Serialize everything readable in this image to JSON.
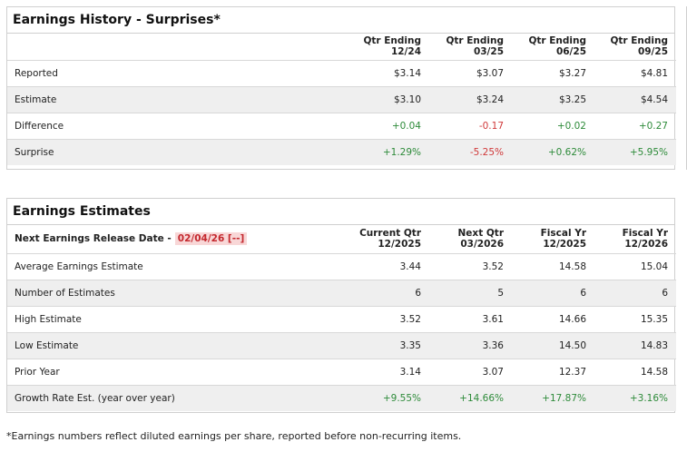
{
  "history": {
    "title": "Earnings History - Surprises*",
    "columns": [
      {
        "l1": "Qtr Ending",
        "l2": "12/24"
      },
      {
        "l1": "Qtr Ending",
        "l2": "03/25"
      },
      {
        "l1": "Qtr Ending",
        "l2": "06/25"
      },
      {
        "l1": "Qtr Ending",
        "l2": "09/25"
      }
    ],
    "rows": [
      {
        "label": "Reported",
        "values": [
          "$3.14",
          "$3.07",
          "$3.27",
          "$4.81"
        ]
      },
      {
        "label": "Estimate",
        "values": [
          "$3.10",
          "$3.24",
          "$3.25",
          "$4.54"
        ]
      },
      {
        "label": "Difference",
        "values": [
          "+0.04",
          "-0.17",
          "+0.02",
          "+0.27"
        ]
      },
      {
        "label": "Surprise",
        "values": [
          "+1.29%",
          "-5.25%",
          "+0.62%",
          "+5.95%"
        ]
      }
    ]
  },
  "estimates": {
    "title": "Earnings Estimates",
    "release_label": "Next Earnings Release Date -",
    "release_date": "02/04/26 [--]",
    "columns": [
      {
        "l1": "Current Qtr",
        "l2": "12/2025"
      },
      {
        "l1": "Next Qtr",
        "l2": "03/2026"
      },
      {
        "l1": "Fiscal Yr",
        "l2": "12/2025"
      },
      {
        "l1": "Fiscal Yr",
        "l2": "12/2026"
      }
    ],
    "rows": [
      {
        "label": "Average Earnings Estimate",
        "values": [
          "3.44",
          "3.52",
          "14.58",
          "15.04"
        ]
      },
      {
        "label": "Number of Estimates",
        "values": [
          "6",
          "5",
          "6",
          "6"
        ]
      },
      {
        "label": "High Estimate",
        "values": [
          "3.52",
          "3.61",
          "14.66",
          "15.35"
        ]
      },
      {
        "label": "Low Estimate",
        "values": [
          "3.35",
          "3.36",
          "14.50",
          "14.83"
        ]
      },
      {
        "label": "Prior Year",
        "values": [
          "3.14",
          "3.07",
          "12.37",
          "14.58"
        ]
      },
      {
        "label": "Growth Rate Est. (year over year)",
        "values": [
          "+9.55%",
          "+14.66%",
          "+17.87%",
          "+3.16%"
        ]
      }
    ]
  },
  "footnote": "*Earnings numbers reflect diluted earnings per share, reported before non-recurring items.",
  "colors": {
    "positive": "#2e8b3a",
    "negative": "#d0393a",
    "alt_row": "#efefef",
    "border": "#cfcfcf"
  }
}
